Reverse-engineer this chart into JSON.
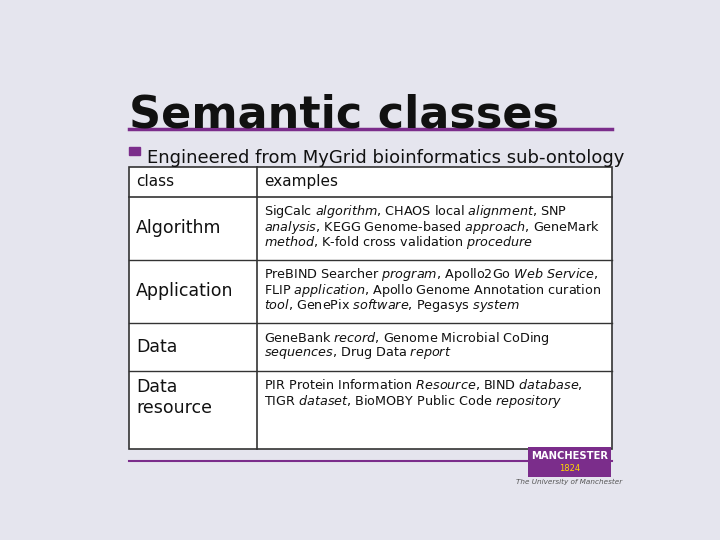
{
  "title": "Semantic classes",
  "title_fontsize": 32,
  "subtitle": "Engineered from MyGrid bioinformatics sub-ontology",
  "subtitle_fontsize": 13,
  "bullet_color": "#7B2D8B",
  "title_underline_color": "#7B2D8B",
  "background_color": "#E5E5EE",
  "table_border_color": "#333333",
  "header_row": [
    "class",
    "examples"
  ],
  "rows": [
    {
      "class": "Algorithm",
      "examples_lines": [
        "SigCalc $\\it{algorithm}$, CHAOS local $\\it{alignment}$, SNP",
        "$\\it{analysis}$, KEGG Genome-based $\\it{approach}$, GeneMark",
        "$\\it{method}$, K-fold cross validation $\\it{procedure}$"
      ]
    },
    {
      "class": "Application",
      "examples_lines": [
        "PreBIND Searcher $\\it{program}$, Apollo2Go $\\it{Web\\ Service}$,",
        "FLIP $\\it{application}$, Apollo Genome Annotation curation",
        "$\\it{tool}$, GenePix $\\it{software}$, Pegasys $\\it{system}$"
      ]
    },
    {
      "class": "Data",
      "examples_lines": [
        "GeneBank $\\it{record}$, Genome Microbial CoDing",
        "$\\it{sequences}$, Drug Data $\\it{report}$"
      ]
    },
    {
      "class": "Data\nresource",
      "examples_lines": [
        "PIR Protein Information $\\it{Resource}$, BIND $\\it{database}$,",
        "TIGR $\\it{dataset}$, BioMOBY Public Code $\\it{repository}$"
      ]
    }
  ],
  "manchester_purple": "#7B2D8B",
  "univ_text": "The University of Manchester"
}
